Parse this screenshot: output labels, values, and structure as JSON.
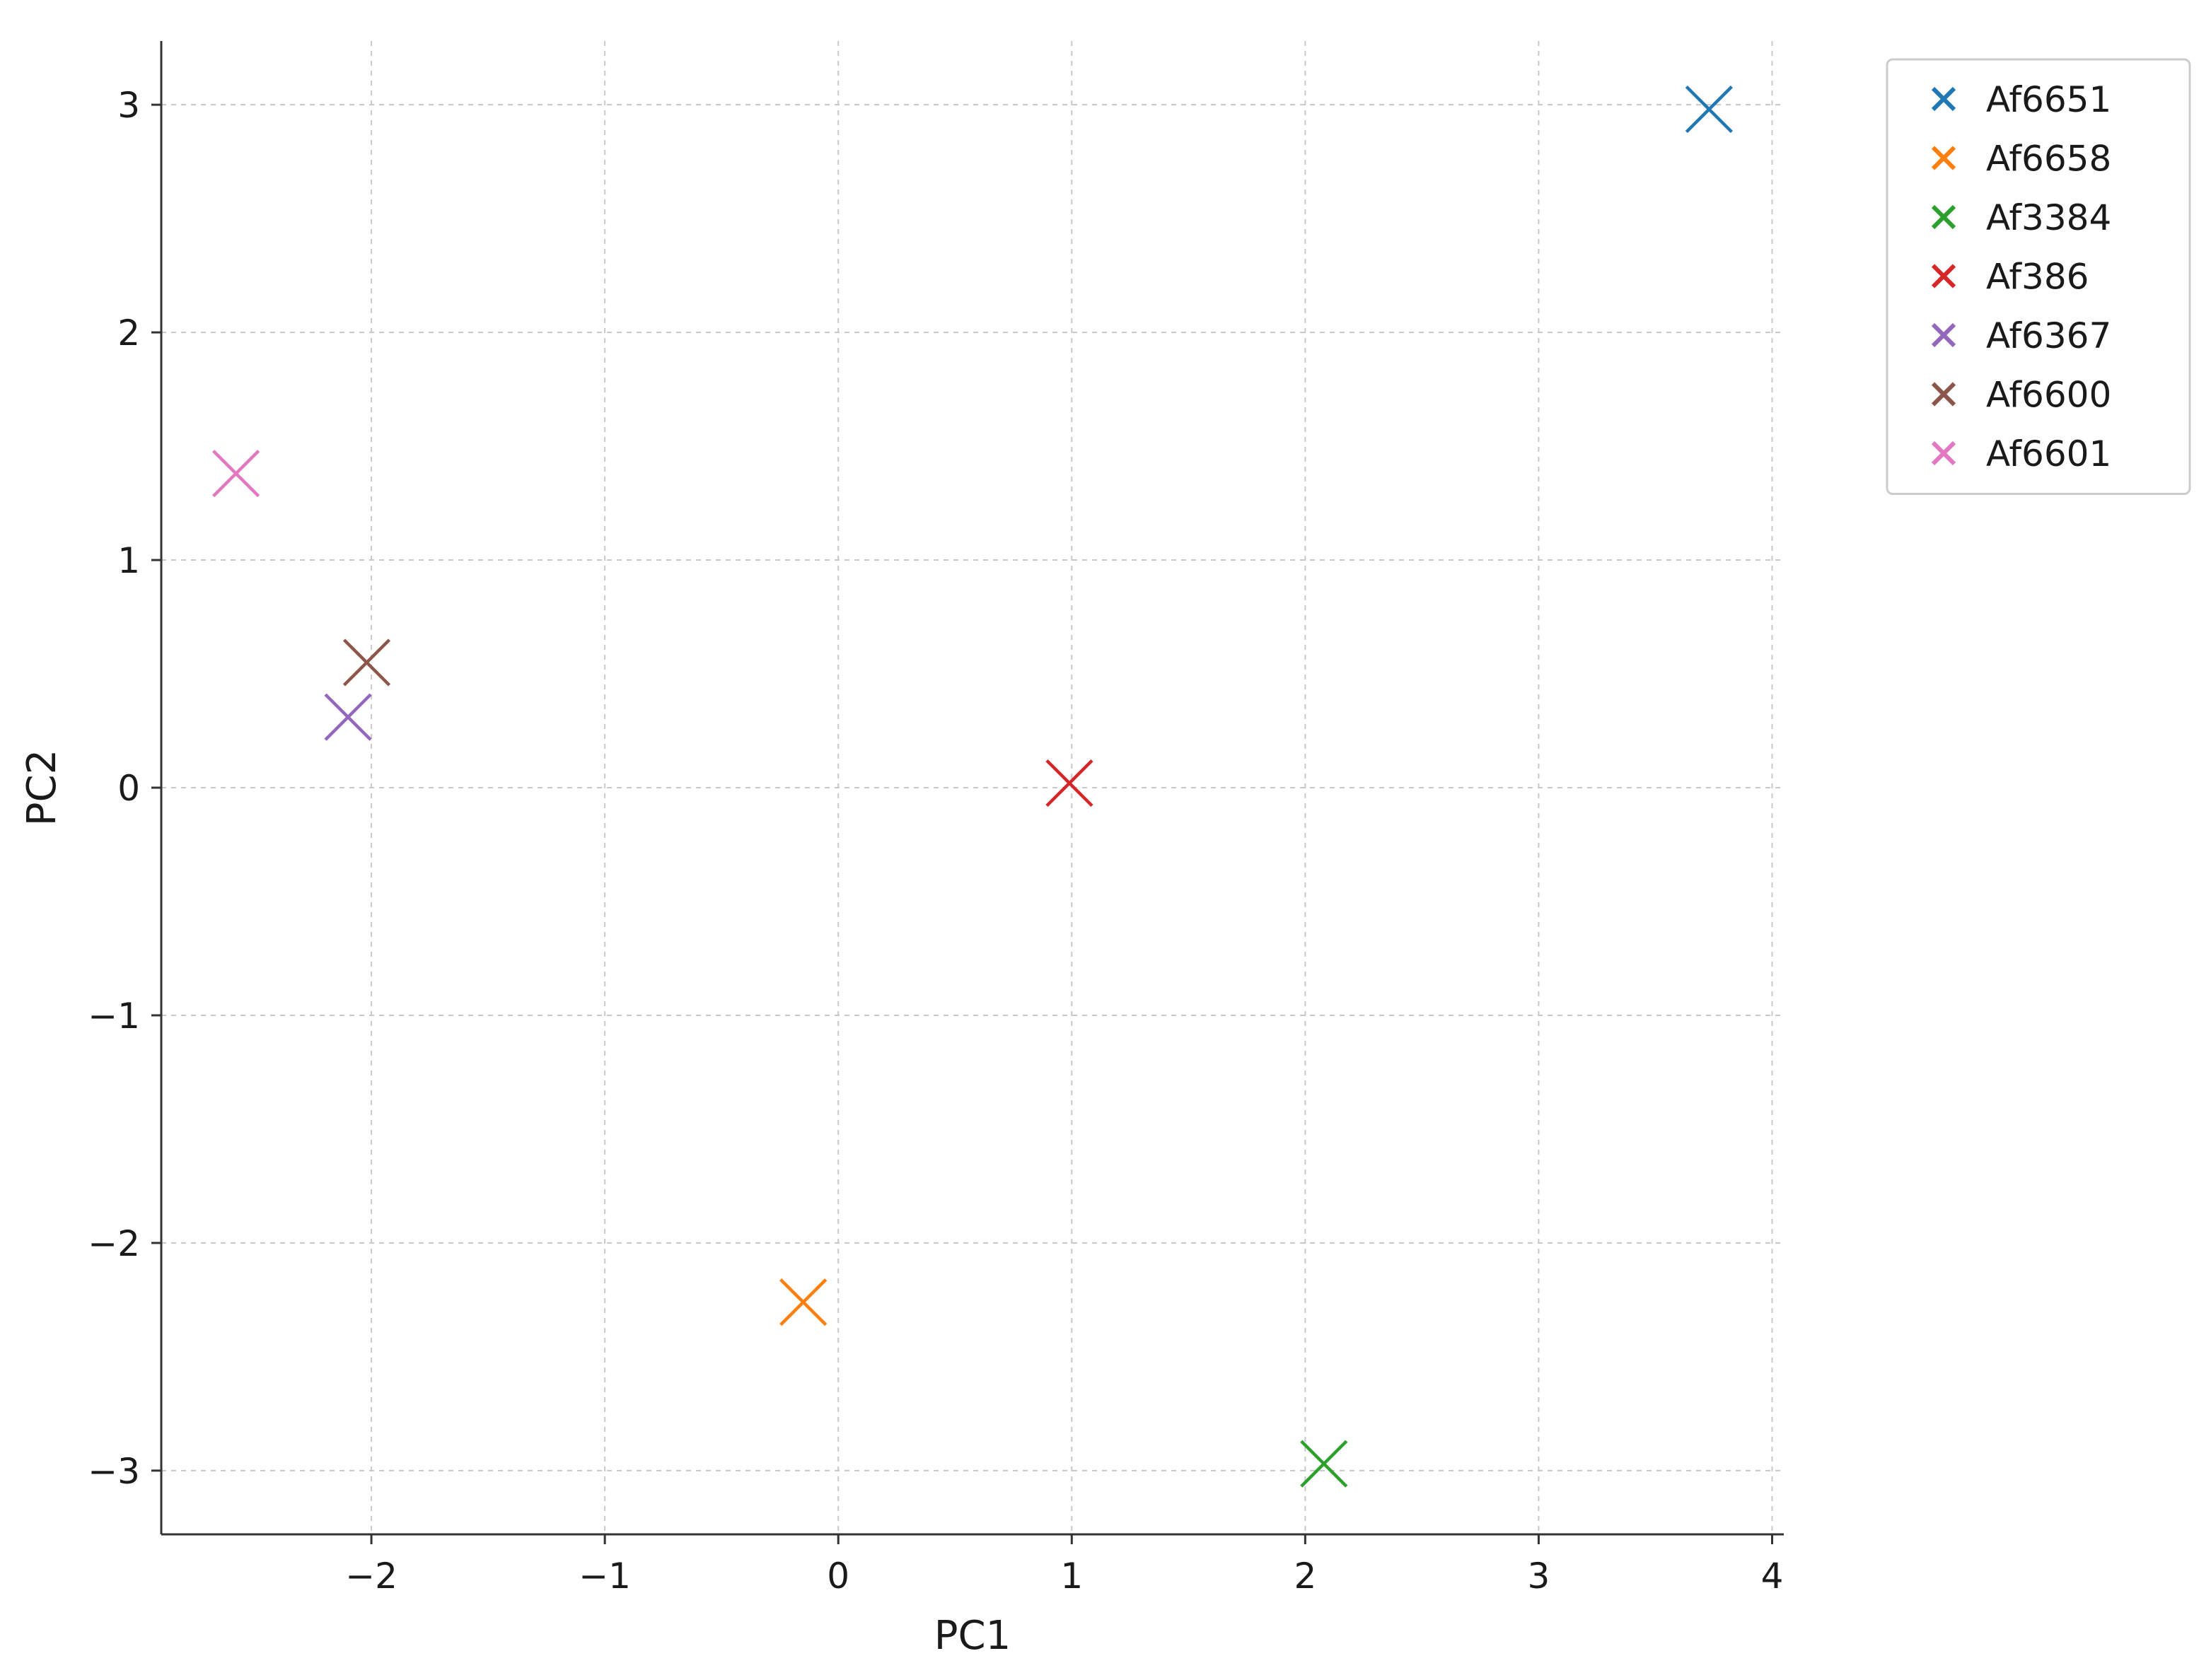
{
  "chart_data": {
    "type": "scatter",
    "title": "",
    "xlabel": "PC1",
    "ylabel": "PC2",
    "xlim": [
      -2.9,
      4.05
    ],
    "ylim": [
      -3.28,
      3.28
    ],
    "xticks": [
      -2,
      -1,
      0,
      1,
      2,
      3,
      4
    ],
    "yticks": [
      -3,
      -2,
      -1,
      0,
      1,
      2,
      3
    ],
    "grid": true,
    "legend_position": "outside-top-right",
    "marker": "x",
    "series": [
      {
        "name": "Af6651",
        "color": "#1f77b4",
        "x": [
          3.73
        ],
        "y": [
          2.98
        ]
      },
      {
        "name": "Af6658",
        "color": "#ff7f0e",
        "x": [
          -0.15
        ],
        "y": [
          -2.26
        ]
      },
      {
        "name": "Af3384",
        "color": "#2ca02c",
        "x": [
          2.08
        ],
        "y": [
          -2.97
        ]
      },
      {
        "name": "Af386",
        "color": "#d62728",
        "x": [
          0.99
        ],
        "y": [
          0.02
        ]
      },
      {
        "name": "Af6367",
        "color": "#9467bd",
        "x": [
          -2.1
        ],
        "y": [
          0.31
        ]
      },
      {
        "name": "Af6600",
        "color": "#8c564b",
        "x": [
          -2.02
        ],
        "y": [
          0.55
        ]
      },
      {
        "name": "Af6601",
        "color": "#e377c2",
        "x": [
          -2.58
        ],
        "y": [
          1.38
        ]
      }
    ]
  }
}
